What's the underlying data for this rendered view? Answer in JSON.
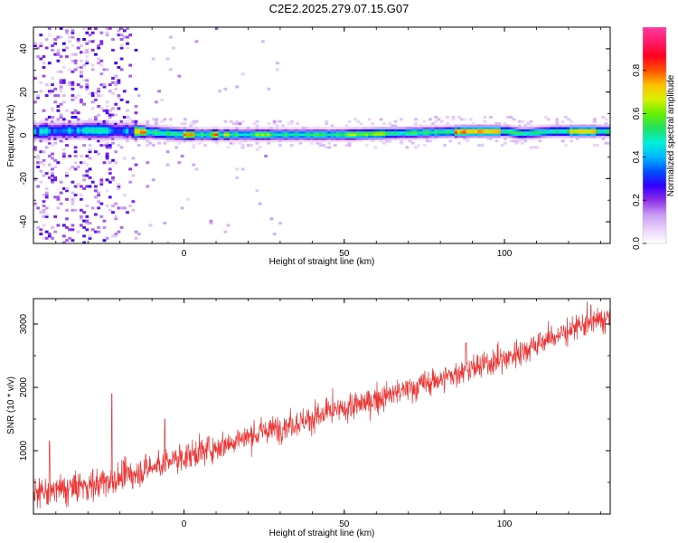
{
  "title": "C2E2.2025.279.07.15.G07",
  "chart_data": [
    {
      "type": "heatmap",
      "xlabel": "Height of straight line (km)",
      "ylabel": "Frequency (Hz)",
      "xlim": [
        -47,
        133
      ],
      "ylim": [
        -50,
        50
      ],
      "xticks": [
        0,
        50,
        100
      ],
      "yticks": [
        -40,
        -20,
        0,
        20,
        40
      ],
      "colorbar": {
        "label": "Normalized spectral amplitude",
        "range": [
          0,
          1
        ],
        "ticks": [
          "0.0",
          "0.2",
          "0.4",
          "0.6",
          "0.8"
        ],
        "colormap": [
          "#ffffff",
          "#e9d2fb",
          "#c79cf3",
          "#8e2ee8",
          "#3300ff",
          "#0050ff",
          "#00b8ff",
          "#00f0d8",
          "#22e060",
          "#66f000",
          "#d8f000",
          "#ffc000",
          "#ff5000",
          "#ff0020",
          "#ff1a6a",
          "#ff3ca0"
        ]
      },
      "ridge": {
        "description_free": true,
        "frequency_center_hz": [
          [
            -47,
            1.5
          ],
          [
            -30,
            2
          ],
          [
            -15,
            1.5
          ],
          [
            0,
            0
          ],
          [
            20,
            0
          ],
          [
            50,
            0
          ],
          [
            75,
            1
          ],
          [
            90,
            1.5
          ],
          [
            100,
            1.5
          ],
          [
            105,
            0.5
          ],
          [
            115,
            1.5
          ],
          [
            133,
            1.5
          ]
        ]
      }
    },
    {
      "type": "line",
      "xlabel": "Height of straight line (km)",
      "ylabel": "SNR (10 * v/v)",
      "xlim": [
        -47,
        133
      ],
      "ylim": [
        0,
        3400
      ],
      "xticks": [
        0,
        50,
        100
      ],
      "yticks": [
        1000,
        2000,
        3000
      ],
      "color": "#ee3333",
      "trend": [
        [
          -47,
          300
        ],
        [
          -30,
          450
        ],
        [
          -20,
          550
        ],
        [
          -15,
          650
        ],
        [
          0,
          900
        ],
        [
          25,
          1300
        ],
        [
          50,
          1650
        ],
        [
          75,
          2050
        ],
        [
          100,
          2450
        ],
        [
          120,
          2900
        ],
        [
          133,
          3100
        ]
      ],
      "spikes": [
        [
          -22.5,
          1900
        ],
        [
          -42,
          1150
        ],
        [
          -6,
          1500
        ],
        [
          88,
          2700
        ],
        [
          127,
          3300
        ]
      ]
    }
  ]
}
